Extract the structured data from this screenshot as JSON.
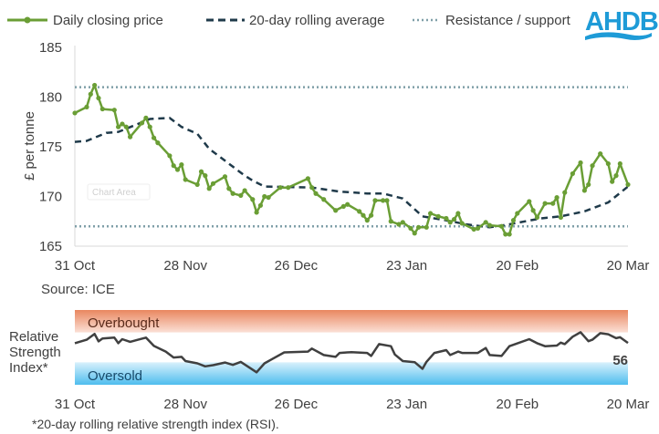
{
  "logo_text": "AHDB",
  "colors": {
    "price": "#6a9e35",
    "average": "#1f3a4a",
    "levels": "#7f9fa8",
    "logo": "#1e9bd7",
    "overbought": "#ec9877",
    "oversold": "#59c2ee"
  },
  "chart_data": [
    {
      "type": "line",
      "legend": [
        "Daily closing price",
        "20-day rolling average",
        "Resistance / support"
      ],
      "legend_placement": "top",
      "ylabel": "£ per tonne",
      "ylim": [
        165,
        185
      ],
      "yticks": [
        "165",
        "170",
        "175",
        "180",
        "185"
      ],
      "xlim": [
        "31 Oct",
        "20 Mar"
      ],
      "xticks": [
        "31 Oct",
        "28 Nov",
        "26 Dec",
        "23 Jan",
        "20 Feb",
        "20 Mar"
      ],
      "grid": false,
      "source": "Source: ICE",
      "tooltip": "Chart Area",
      "series": [
        {
          "name": "Daily closing price",
          "style": "solid-markers",
          "points": [
            [
              "31 Oct",
              178.4
            ],
            [
              "3 Nov",
              179.0
            ],
            [
              "4 Nov",
              180.3
            ],
            [
              "5 Nov",
              181.2
            ],
            [
              "6 Nov",
              179.9
            ],
            [
              "7 Nov",
              178.8
            ],
            [
              "10 Nov",
              178.7
            ],
            [
              "11 Nov",
              177.0
            ],
            [
              "12 Nov",
              177.3
            ],
            [
              "13 Nov",
              177.0
            ],
            [
              "14 Nov",
              176.0
            ],
            [
              "17 Nov",
              177.4
            ],
            [
              "18 Nov",
              177.9
            ],
            [
              "19 Nov",
              177.0
            ],
            [
              "20 Nov",
              175.9
            ],
            [
              "21 Nov",
              175.4
            ],
            [
              "24 Nov",
              174.1
            ],
            [
              "25 Nov",
              173.1
            ],
            [
              "26 Nov",
              172.7
            ],
            [
              "27 Nov",
              173.2
            ],
            [
              "28 Nov",
              171.7
            ],
            [
              "1 Dec",
              171.2
            ],
            [
              "2 Dec",
              172.5
            ],
            [
              "3 Dec",
              172.1
            ],
            [
              "4 Dec",
              170.8
            ],
            [
              "5 Dec",
              171.3
            ],
            [
              "8 Dec",
              172.0
            ],
            [
              "9 Dec",
              170.8
            ],
            [
              "10 Dec",
              170.3
            ],
            [
              "12 Dec",
              170.1
            ],
            [
              "13 Dec",
              170.6
            ],
            [
              "15 Dec",
              169.7
            ],
            [
              "16 Dec",
              168.4
            ],
            [
              "17 Dec",
              169.1
            ],
            [
              "18 Dec",
              170.0
            ],
            [
              "19 Dec",
              169.9
            ],
            [
              "22 Dec",
              170.9
            ],
            [
              "24 Dec",
              170.9
            ],
            [
              "29 Dec",
              171.8
            ],
            [
              "30 Dec",
              170.9
            ],
            [
              "31 Dec",
              170.3
            ],
            [
              "2 Jan",
              169.7
            ],
            [
              "5 Jan",
              168.6
            ],
            [
              "7 Jan",
              169.0
            ],
            [
              "8 Jan",
              169.2
            ],
            [
              "11 Jan",
              168.5
            ],
            [
              "12 Jan",
              168.1
            ],
            [
              "13 Jan",
              167.6
            ],
            [
              "14 Jan",
              168.1
            ],
            [
              "15 Jan",
              169.6
            ],
            [
              "17 Jan",
              169.6
            ],
            [
              "18 Jan",
              169.6
            ],
            [
              "19 Jan",
              167.5
            ],
            [
              "21 Jan",
              167.2
            ],
            [
              "22 Jan",
              167.4
            ],
            [
              "24 Jan",
              166.8
            ],
            [
              "25 Jan",
              166.3
            ],
            [
              "26 Jan",
              166.9
            ],
            [
              "28 Jan",
              166.9
            ],
            [
              "29 Jan",
              168.3
            ],
            [
              "31 Jan",
              168.0
            ],
            [
              "2 Feb",
              167.8
            ],
            [
              "3 Feb",
              167.4
            ],
            [
              "4 Feb",
              167.7
            ],
            [
              "5 Feb",
              168.3
            ],
            [
              "6 Feb",
              167.3
            ],
            [
              "9 Feb",
              166.7
            ],
            [
              "10 Feb",
              166.8
            ],
            [
              "12 Feb",
              167.4
            ],
            [
              "13 Feb",
              167.1
            ],
            [
              "16 Feb",
              167.0
            ],
            [
              "17 Feb",
              166.2
            ],
            [
              "18 Feb",
              166.2
            ],
            [
              "19 Feb",
              167.6
            ],
            [
              "20 Feb",
              168.3
            ],
            [
              "23 Feb",
              169.5
            ],
            [
              "24 Feb",
              168.6
            ],
            [
              "25 Feb",
              167.9
            ],
            [
              "27 Feb",
              169.3
            ],
            [
              "1 Mar",
              169.3
            ],
            [
              "2 Mar",
              169.9
            ],
            [
              "3 Mar",
              167.9
            ],
            [
              "4 Mar",
              170.4
            ],
            [
              "6 Mar",
              172.3
            ],
            [
              "8 Mar",
              173.4
            ],
            [
              "9 Mar",
              170.6
            ],
            [
              "10 Mar",
              171.2
            ],
            [
              "11 Mar",
              173.1
            ],
            [
              "13 Mar",
              174.3
            ],
            [
              "15 Mar",
              173.3
            ],
            [
              "16 Mar",
              171.5
            ],
            [
              "17 Mar",
              172.1
            ],
            [
              "18 Mar",
              173.3
            ],
            [
              "20 Mar",
              171.2
            ]
          ]
        },
        {
          "name": "20-day rolling average",
          "style": "dashed",
          "points": [
            [
              "31 Oct",
              175.5
            ],
            [
              "3 Nov",
              175.6
            ],
            [
              "8 Nov",
              176.4
            ],
            [
              "11 Nov",
              176.5
            ],
            [
              "16 Nov",
              177.3
            ],
            [
              "19 Nov",
              177.8
            ],
            [
              "24 Nov",
              177.9
            ],
            [
              "27 Nov",
              177.0
            ],
            [
              "1 Dec",
              176.3
            ],
            [
              "4 Dec",
              174.8
            ],
            [
              "7 Dec",
              173.9
            ],
            [
              "10 Dec",
              173.0
            ],
            [
              "13 Dec",
              172.1
            ],
            [
              "15 Dec",
              171.6
            ],
            [
              "18 Dec",
              171.0
            ],
            [
              "30 Dec",
              170.9
            ],
            [
              "6 Jan",
              170.5
            ],
            [
              "13 Jan",
              170.3
            ],
            [
              "17 Jan",
              170.3
            ],
            [
              "22 Jan",
              169.8
            ],
            [
              "27 Jan",
              168.0
            ],
            [
              "2 Feb",
              167.6
            ],
            [
              "7 Feb",
              167.2
            ],
            [
              "13 Feb",
              166.9
            ],
            [
              "18 Feb",
              167.2
            ],
            [
              "26 Feb",
              167.8
            ],
            [
              "3 Mar",
              168.0
            ],
            [
              "9 Mar",
              168.5
            ],
            [
              "15 Mar",
              169.4
            ],
            [
              "20 Mar",
              171.0
            ]
          ]
        },
        {
          "name": "Resistance / support",
          "style": "dotted",
          "levels": [
            181,
            167
          ]
        }
      ]
    },
    {
      "type": "line",
      "ylabel": "Relative Strength Index*",
      "ylim": [
        0,
        100
      ],
      "xticks": [
        "31 Oct",
        "28 Nov",
        "26 Dec",
        "23 Jan",
        "20 Feb",
        "20 Mar"
      ],
      "bands": [
        {
          "label": "Overbought",
          "from": 70,
          "to": 100
        },
        {
          "label": "Oversold",
          "from": 0,
          "to": 30
        }
      ],
      "last_value_label": "56",
      "footnote": "*20-day rolling relative strength index (RSI).",
      "series": [
        {
          "points": [
            [
              "31 Oct",
              55.6
            ],
            [
              "3 Nov",
              60.3
            ],
            [
              "5 Nov",
              68
            ],
            [
              "6 Nov",
              58
            ],
            [
              "7 Nov",
              62
            ],
            [
              "10 Nov",
              63
            ],
            [
              "11 Nov",
              55.6
            ],
            [
              "12 Nov",
              61
            ],
            [
              "14 Nov",
              57.5
            ],
            [
              "16 Nov",
              60.3
            ],
            [
              "18 Nov",
              63
            ],
            [
              "20 Nov",
              52
            ],
            [
              "23 Nov",
              44.4
            ],
            [
              "25 Nov",
              36.5
            ],
            [
              "27 Nov",
              37.3
            ],
            [
              "28 Nov",
              31.7
            ],
            [
              "1 Dec",
              28.6
            ],
            [
              "3 Dec",
              24.6
            ],
            [
              "5 Dec",
              26.2
            ],
            [
              "8 Dec",
              29.8
            ],
            [
              "10 Dec",
              26.6
            ],
            [
              "12 Dec",
              30.6
            ],
            [
              "16 Dec",
              16.7
            ],
            [
              "18 Dec",
              28.6
            ],
            [
              "20 Dec",
              34.5
            ],
            [
              "23 Dec",
              43.3
            ],
            [
              "29 Dec",
              44.4
            ],
            [
              "30 Dec",
              48.4
            ],
            [
              "2 Jan",
              39.7
            ],
            [
              "5 Jan",
              37.3
            ],
            [
              "6 Jan",
              42.5
            ],
            [
              "9 Jan",
              43.7
            ],
            [
              "13 Jan",
              42.5
            ],
            [
              "14 Jan",
              38.5
            ],
            [
              "16 Jan",
              54.4
            ],
            [
              "19 Jan",
              51.6
            ],
            [
              "20 Jan",
              40.5
            ],
            [
              "22 Jan",
              31.7
            ],
            [
              "25 Jan",
              30.2
            ],
            [
              "27 Jan",
              21.4
            ],
            [
              "28 Jan",
              30.6
            ],
            [
              "30 Jan",
              42.5
            ],
            [
              "2 Feb",
              46.4
            ],
            [
              "3 Feb",
              39.7
            ],
            [
              "5 Feb",
              44.4
            ],
            [
              "6 Feb",
              42.5
            ],
            [
              "10 Feb",
              42.5
            ],
            [
              "12 Feb",
              49.2
            ],
            [
              "13 Feb",
              39.7
            ],
            [
              "16 Feb",
              38.5
            ],
            [
              "18 Feb",
              51.6
            ],
            [
              "23 Feb",
              61
            ],
            [
              "25 Feb",
              55.6
            ],
            [
              "27 Feb",
              51.6
            ],
            [
              "2 Mar",
              52.4
            ],
            [
              "3 Mar",
              56.3
            ],
            [
              "4 Mar",
              54.4
            ],
            [
              "6 Mar",
              64.3
            ],
            [
              "8 Mar",
              70.2
            ],
            [
              "10 Mar",
              58.3
            ],
            [
              "11 Mar",
              60.3
            ],
            [
              "13 Mar",
              69
            ],
            [
              "15 Mar",
              67.5
            ],
            [
              "17 Mar",
              62.3
            ],
            [
              "18 Mar",
              63.5
            ],
            [
              "20 Mar",
              56
            ]
          ]
        }
      ]
    }
  ]
}
